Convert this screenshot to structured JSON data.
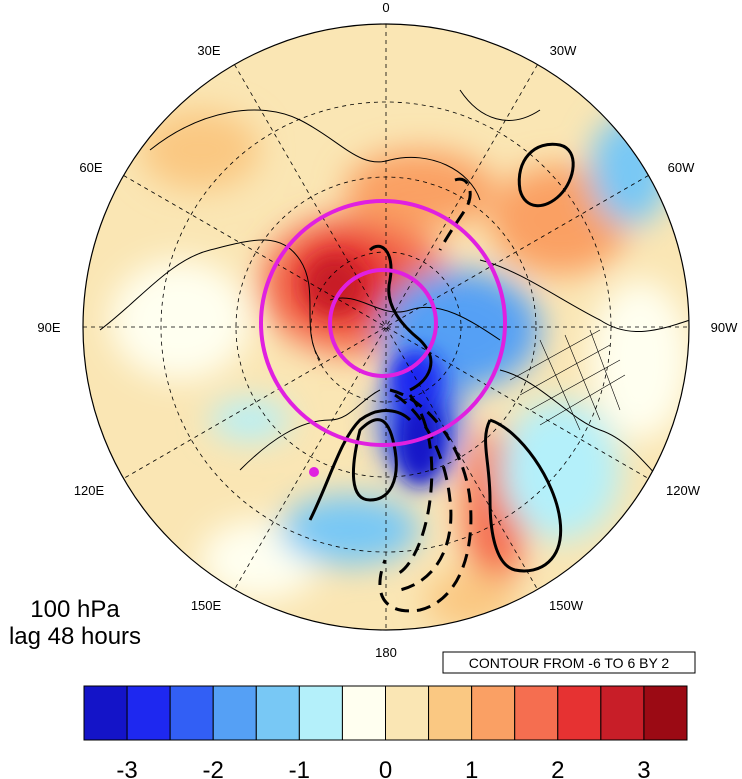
{
  "map": {
    "projection": "north polar stereographic",
    "longitude_labels": {
      "top": "0",
      "upper_left": "30E",
      "upper_right": "30W",
      "left_upper": "60E",
      "right_upper": "60W",
      "left": "90E",
      "right": "90W",
      "left_lower": "120E",
      "right_lower": "120W",
      "lower_left": "150E",
      "lower_right": "150W",
      "bottom": "180"
    },
    "panel_text": {
      "level": "100 hPa",
      "lag": "lag 48 hours"
    },
    "contour_note": "CONTOUR FROM -6 TO 6 BY 2",
    "ring_color": "#e020e0",
    "marker_color": "#e020e0"
  },
  "colorbar": {
    "colors": [
      "#1414c8",
      "#1e28f0",
      "#325ff5",
      "#55a0f5",
      "#78c8f5",
      "#b4f0fa",
      "#fffff0",
      "#fae6b4",
      "#fac882",
      "#faa064",
      "#f56e50",
      "#e63232",
      "#c81e28",
      "#9b0a14"
    ],
    "tick_labels": [
      "-3",
      "-2",
      "-1",
      "0",
      "1",
      "2",
      "3"
    ]
  }
}
